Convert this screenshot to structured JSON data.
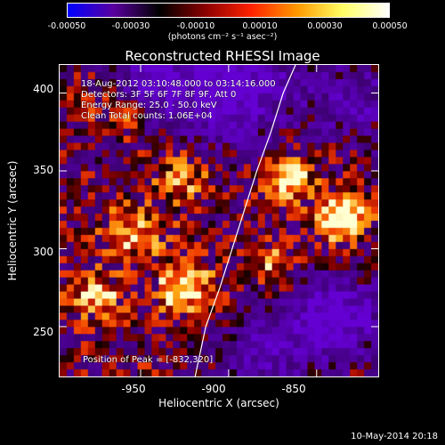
{
  "colorbar": {
    "ticks": [
      "-0.00050",
      "-0.00030",
      "-0.00010",
      "0.00010",
      "0.00030",
      "0.00050"
    ],
    "tick_values": [
      -0.0005,
      -0.0003,
      -0.0001,
      0.0001,
      0.0003,
      0.0005
    ],
    "range": [
      -0.0005,
      0.0005
    ],
    "unit_label": "(photons cm⁻² s⁻¹ asec⁻²)",
    "colors": [
      "#0000ff",
      "#5a00a0",
      "#000000",
      "#8b0000",
      "#ff2200",
      "#ff9900",
      "#ffff66",
      "#ffffff"
    ]
  },
  "chart_data": {
    "type": "heatmap",
    "title": "Reconstructed RHESSI Image",
    "xlabel": "Heliocentric X (arcsec)",
    "ylabel": "Heliocentric Y (arcsec)",
    "xlim": [
      -996,
      -815
    ],
    "ylim": [
      218,
      418
    ],
    "x_ticks": [
      -950,
      -900,
      -850
    ],
    "y_ticks": [
      250,
      300,
      350,
      400
    ],
    "x_tick_labels": [
      "-950",
      "-900",
      "-850"
    ],
    "y_tick_labels": [
      "250",
      "300",
      "350",
      "400"
    ],
    "annotations": {
      "time": "18-Aug-2012 03:10:48.000 to 03:14:16.000",
      "detectors": "Detectors: 3F 5F 6F 7F 8F 9F, Att 0",
      "energy": "Energy Range: 25.0 - 50.0 keV",
      "method": "Clean    Total counts: 1.06E+04",
      "peak": "Position of Peak = [-832,320]"
    },
    "peak": [
      -832,
      320
    ],
    "limb_curve": {
      "x": [
        -919,
        -913,
        -905,
        -898,
        -891,
        -884,
        -876,
        -869,
        -862
      ],
      "y": [
        218,
        250,
        275,
        300,
        325,
        350,
        375,
        400,
        418
      ]
    }
  },
  "footer": {
    "timestamp": "10-May-2014 20:18"
  }
}
